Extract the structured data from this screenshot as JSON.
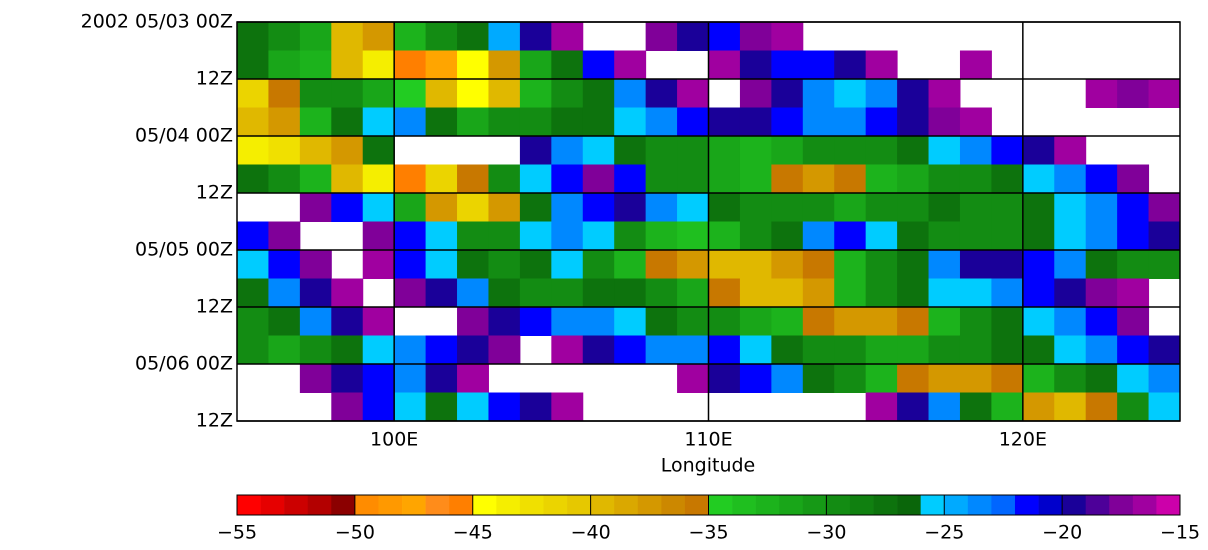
{
  "chart_data": {
    "type": "heatmap",
    "xlabel": "Longitude",
    "xlim": [
      95,
      125
    ],
    "xticks": [
      {
        "value": 100,
        "label": "100E"
      },
      {
        "value": 110,
        "label": "110E"
      },
      {
        "value": 120,
        "label": "120E"
      }
    ],
    "ylim": [
      0,
      84
    ],
    "yticks": [
      {
        "value": 0,
        "label": "2002 05/03 00Z"
      },
      {
        "value": 12,
        "label": "12Z"
      },
      {
        "value": 24,
        "label": "05/04 00Z"
      },
      {
        "value": 36,
        "label": "12Z"
      },
      {
        "value": 48,
        "label": "05/05 00Z"
      },
      {
        "value": 60,
        "label": "12Z"
      },
      {
        "value": 72,
        "label": "05/06 00Z"
      },
      {
        "value": 84,
        "label": "12Z"
      }
    ],
    "grid": true,
    "xbins": [
      95,
      96,
      97,
      98,
      99,
      100,
      101,
      102,
      103,
      104,
      105,
      106,
      107,
      108,
      109,
      110,
      111,
      112,
      113,
      114,
      115,
      116,
      117,
      118,
      119,
      120,
      121,
      122,
      123,
      124,
      125
    ],
    "ybins": [
      0,
      6,
      12,
      18,
      24,
      30,
      36,
      42,
      48,
      54,
      60,
      66,
      72,
      78,
      84
    ],
    "values": [
      [
        -28,
        -30,
        -32,
        -40,
        -38,
        -33,
        -30,
        -28,
        -25,
        -20,
        -17,
        null,
        null,
        -18,
        -20,
        -22,
        -18,
        -17,
        null,
        null,
        null,
        null,
        null,
        null,
        null,
        null,
        null,
        null,
        null,
        null
      ],
      [
        -28,
        -32,
        -33,
        -40,
        -44,
        -46,
        -48,
        -45,
        -38,
        -32,
        -28,
        -22,
        -17,
        null,
        null,
        -17,
        -20,
        -22,
        -22,
        -20,
        -17,
        null,
        null,
        -17,
        null,
        null,
        null,
        null,
        null,
        null
      ],
      [
        -42,
        -36,
        -30,
        -30,
        -32,
        -35,
        -40,
        -45,
        -40,
        -33,
        -30,
        -28,
        -24,
        -20,
        -17,
        null,
        -18,
        -20,
        -24,
        -26,
        -24,
        -20,
        -17,
        null,
        null,
        null,
        null,
        -17,
        -18,
        -17
      ],
      [
        -40,
        -38,
        -33,
        -28,
        -26,
        -24,
        -28,
        -32,
        -30,
        -30,
        -28,
        -28,
        -26,
        -24,
        -22,
        -20,
        -20,
        -22,
        -24,
        -24,
        -22,
        -20,
        -18,
        -17,
        null,
        null,
        null,
        null,
        null,
        null
      ],
      [
        -44,
        -43,
        -40,
        -38,
        -28,
        null,
        null,
        null,
        null,
        -20,
        -24,
        -26,
        -28,
        -30,
        -30,
        -32,
        -33,
        -32,
        -30,
        -30,
        -30,
        -28,
        -26,
        -24,
        -22,
        -20,
        -17,
        null,
        null,
        null
      ],
      [
        -28,
        -30,
        -33,
        -40,
        -44,
        -46,
        -42,
        -36,
        -30,
        -26,
        -22,
        -18,
        -22,
        -30,
        -30,
        -32,
        -33,
        -36,
        -38,
        -36,
        -33,
        -32,
        -30,
        -30,
        -28,
        -26,
        -24,
        -22,
        -18,
        null
      ],
      [
        null,
        null,
        -18,
        -22,
        -26,
        -32,
        -38,
        -42,
        -38,
        -28,
        -24,
        -22,
        -20,
        -24,
        -26,
        -28,
        -30,
        -30,
        -30,
        -32,
        -30,
        -30,
        -28,
        -30,
        -30,
        -28,
        -26,
        -24,
        -22,
        -18
      ],
      [
        -22,
        -18,
        null,
        null,
        -18,
        -22,
        -26,
        -30,
        -30,
        -26,
        -24,
        -26,
        -30,
        -33,
        -34,
        -33,
        -30,
        -28,
        -24,
        -22,
        -26,
        -28,
        -30,
        -30,
        -30,
        -28,
        -26,
        -24,
        -22,
        -20
      ],
      [
        -26,
        -22,
        -18,
        null,
        -17,
        -22,
        -26,
        -28,
        -30,
        -28,
        -26,
        -30,
        -33,
        -36,
        -38,
        -40,
        -40,
        -38,
        -36,
        -33,
        -30,
        -28,
        -24,
        -20,
        -20,
        -22,
        -24,
        -28,
        -30,
        -30
      ],
      [
        -28,
        -24,
        -20,
        -17,
        null,
        -18,
        -20,
        -24,
        -28,
        -30,
        -30,
        -28,
        -28,
        -30,
        -32,
        -36,
        -40,
        -40,
        -38,
        -33,
        -30,
        -28,
        -26,
        -26,
        -24,
        -22,
        -20,
        -18,
        -17,
        null
      ],
      [
        -30,
        -28,
        -24,
        -20,
        -17,
        null,
        null,
        -18,
        -20,
        -22,
        -24,
        -24,
        -26,
        -28,
        -30,
        -30,
        -32,
        -33,
        -36,
        -38,
        -38,
        -36,
        -33,
        -30,
        -28,
        -26,
        -24,
        -22,
        -18,
        null
      ],
      [
        -30,
        -32,
        -30,
        -28,
        -26,
        -24,
        -22,
        -20,
        -18,
        null,
        -17,
        -20,
        -22,
        -24,
        -24,
        -22,
        -26,
        -28,
        -30,
        -30,
        -32,
        -32,
        -30,
        -30,
        -28,
        -28,
        -26,
        -24,
        -22,
        -20
      ],
      [
        null,
        null,
        -18,
        -20,
        -22,
        -24,
        -20,
        -17,
        null,
        null,
        null,
        null,
        null,
        null,
        -17,
        -20,
        -22,
        -24,
        -28,
        -30,
        -33,
        -36,
        -38,
        -38,
        -36,
        -33,
        -30,
        -28,
        -26,
        -24
      ],
      [
        null,
        null,
        null,
        -18,
        -22,
        -26,
        -28,
        -26,
        -22,
        -20,
        -17,
        null,
        null,
        null,
        null,
        null,
        null,
        null,
        null,
        null,
        -17,
        -20,
        -24,
        -28,
        -33,
        -38,
        -40,
        -36,
        -30,
        -26
      ]
    ],
    "colorbar": {
      "clim": [
        -55,
        -15
      ],
      "ticks": [
        {
          "value": -55,
          "label": "−55"
        },
        {
          "value": -50,
          "label": "−50"
        },
        {
          "value": -45,
          "label": "−45"
        },
        {
          "value": -40,
          "label": "−40"
        },
        {
          "value": -35,
          "label": "−35"
        },
        {
          "value": -30,
          "label": "−30"
        },
        {
          "value": -25,
          "label": "−25"
        },
        {
          "value": -20,
          "label": "−20"
        },
        {
          "value": -15,
          "label": "−15"
        }
      ],
      "colors": [
        "#ff0000",
        "#e60000",
        "#cc0000",
        "#b30000",
        "#8b0000",
        "#ff8c00",
        "#ff9900",
        "#ffa500",
        "#ff8c1a",
        "#ff7f00",
        "#ffff00",
        "#f5ee00",
        "#f0e000",
        "#ebd400",
        "#e6c800",
        "#e0b800",
        "#daa800",
        "#d49800",
        "#cc8800",
        "#c87800",
        "#22cc22",
        "#1fbf1f",
        "#1cb31c",
        "#19a619",
        "#169916",
        "#138c13",
        "#108010",
        "#0d730d",
        "#0a660a",
        "#00ccff",
        "#00aaff",
        "#0088ff",
        "#0066ff",
        "#0000ff",
        "#0000cc",
        "#1a0099",
        "#4d0099",
        "#800099",
        "#a000a0",
        "#cc00aa"
      ]
    }
  }
}
